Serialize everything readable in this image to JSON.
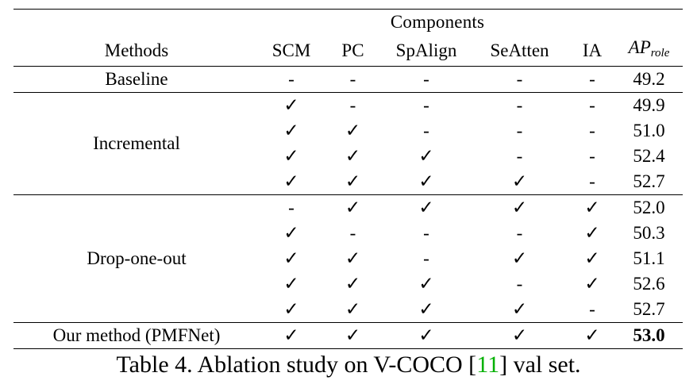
{
  "table": {
    "components_label": "Components",
    "methods_label": "Methods",
    "columns": [
      "SCM",
      "PC",
      "SpAlign",
      "SeAtten",
      "IA"
    ],
    "ap_main": "AP",
    "ap_sub": "role",
    "rows": [
      {
        "method": "Baseline",
        "cells": [
          "-",
          "-",
          "-",
          "-",
          "-"
        ],
        "ap": "49.2"
      },
      {
        "method": "",
        "cells": [
          "✓",
          "-",
          "-",
          "-",
          "-"
        ],
        "ap": "49.9"
      },
      {
        "method": "",
        "cells": [
          "✓",
          "✓",
          "-",
          "-",
          "-"
        ],
        "ap": "51.0"
      },
      {
        "method": "Incremental",
        "cells": [
          "✓",
          "✓",
          "✓",
          "-",
          "-"
        ],
        "ap": "52.4"
      },
      {
        "method": "",
        "cells": [
          "✓",
          "✓",
          "✓",
          "✓",
          "-"
        ],
        "ap": "52.7"
      },
      {
        "method": "",
        "cells": [
          "-",
          "✓",
          "✓",
          "✓",
          "✓"
        ],
        "ap": "52.0"
      },
      {
        "method": "",
        "cells": [
          "✓",
          "-",
          "-",
          "-",
          "✓"
        ],
        "ap": "50.3"
      },
      {
        "method": "Drop-one-out",
        "cells": [
          "✓",
          "✓",
          "-",
          "✓",
          "✓"
        ],
        "ap": "51.1"
      },
      {
        "method": "",
        "cells": [
          "✓",
          "✓",
          "✓",
          "-",
          "✓"
        ],
        "ap": "52.6"
      },
      {
        "method": "",
        "cells": [
          "✓",
          "✓",
          "✓",
          "✓",
          "-"
        ],
        "ap": "52.7"
      },
      {
        "method": "Our method (PMFNet)",
        "cells": [
          "✓",
          "✓",
          "✓",
          "✓",
          "✓"
        ],
        "ap": "53.0"
      }
    ]
  },
  "caption": {
    "prefix": "Table 4. Ablation study on V-COCO [",
    "ref": "11",
    "suffix": "] val set."
  }
}
